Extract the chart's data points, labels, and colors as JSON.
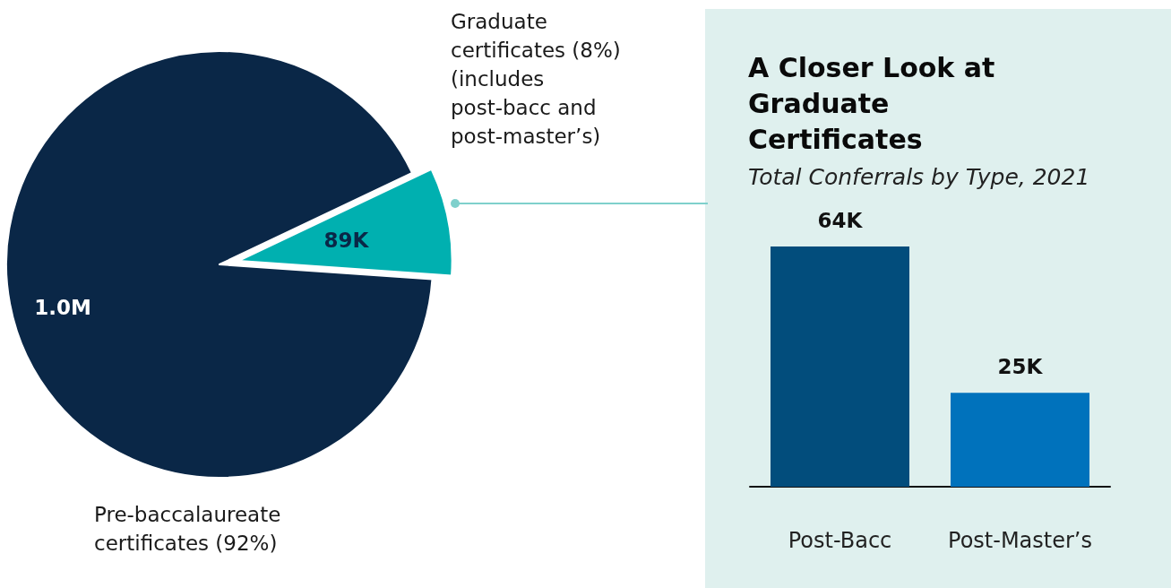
{
  "chart_data": [
    {
      "type": "pie",
      "categories": [
        "Pre-baccalaureate certificates (92%)",
        "Graduate certificates (8%) (includes post-bacc and post-master’s)"
      ],
      "values": [
        1000000,
        89000
      ],
      "value_labels": [
        "1.0M",
        "89K"
      ],
      "colors": [
        "#0a2747",
        "#00b0b0"
      ],
      "legend": false
    },
    {
      "type": "bar",
      "title": "A Closer Look at Graduate Certificates",
      "subtitle": "Total Conferrals by Type, 2021",
      "categories": [
        "Post-Bacc",
        "Post-Master’s"
      ],
      "values": [
        64000,
        25000
      ],
      "value_labels": [
        "64K",
        "25K"
      ],
      "colors": [
        "#024d7c",
        "#0072bc"
      ],
      "legend": false
    }
  ]
}
